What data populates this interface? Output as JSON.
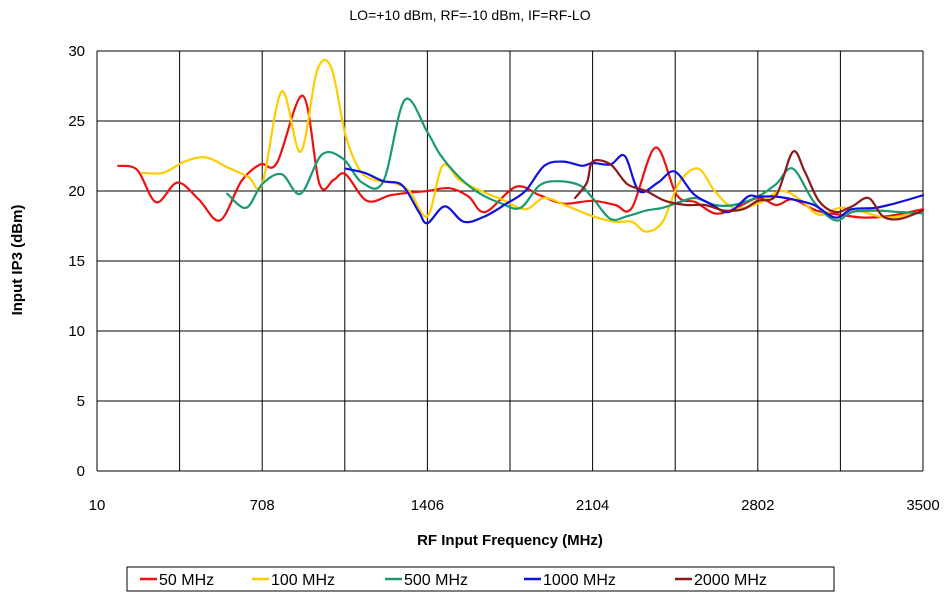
{
  "chart_data": {
    "type": "line",
    "title": "LO=+10 dBm, RF=-10 dBm, IF=RF-LO",
    "xlabel": "RF Input Frequency (MHz)",
    "ylabel": "Input IP3 (dBm)",
    "xlim": [
      10,
      3500
    ],
    "ylim": [
      0,
      30
    ],
    "xticks": [
      10,
      708,
      1406,
      2104,
      2802,
      3500
    ],
    "xtick_labels": [
      "10",
      "708",
      "1406",
      "2104",
      "2802",
      "3500"
    ],
    "yticks": [
      0,
      5,
      10,
      15,
      20,
      25,
      30
    ],
    "ytick_labels": [
      "0",
      "5",
      "10",
      "15",
      "20",
      "25",
      "30"
    ],
    "grid": true,
    "legend_position": "bottom",
    "series": [
      {
        "name": "50 MHz",
        "color": "#ee1111",
        "x": [
          100,
          180,
          260,
          350,
          440,
          530,
          620,
          700,
          770,
          880,
          950,
          1010,
          1060,
          1150,
          1250,
          1340,
          1406,
          1500,
          1580,
          1650,
          1780,
          1880,
          1980,
          2104,
          2200,
          2270,
          2370,
          2460,
          2540,
          2620,
          2700,
          2802,
          2880,
          2950,
          3050,
          3150,
          3250,
          3350,
          3500
        ],
        "values": [
          21.8,
          21.5,
          19.2,
          20.6,
          19.4,
          17.9,
          20.7,
          21.9,
          22.0,
          26.8,
          20.5,
          20.8,
          21.2,
          19.3,
          19.7,
          19.9,
          20.0,
          20.2,
          19.6,
          18.5,
          20.3,
          19.7,
          19.1,
          19.3,
          19.0,
          18.8,
          23.1,
          19.7,
          19.2,
          18.4,
          18.7,
          19.5,
          19.0,
          19.4,
          18.6,
          18.3,
          18.1,
          18.2,
          18.7
        ]
      },
      {
        "name": "100 MHz",
        "color": "#ffcc00",
        "x": [
          200,
          290,
          380,
          470,
          560,
          650,
          708,
          790,
          870,
          940,
          1000,
          1060,
          1120,
          1180,
          1260,
          1330,
          1406,
          1470,
          1540,
          1620,
          1720,
          1820,
          1900,
          2000,
          2104,
          2200,
          2270,
          2330,
          2400,
          2470,
          2550,
          2620,
          2700,
          2802,
          2900,
          2980,
          3060,
          3150,
          3250,
          3350,
          3500
        ],
        "values": [
          21.3,
          21.3,
          22.1,
          22.4,
          21.7,
          21.0,
          20.5,
          27.1,
          22.8,
          28.6,
          28.8,
          24.0,
          21.5,
          20.8,
          20.6,
          20.0,
          18.2,
          21.8,
          20.8,
          20.1,
          19.4,
          18.7,
          19.5,
          18.9,
          18.2,
          17.8,
          17.8,
          17.1,
          17.8,
          20.6,
          21.6,
          20.0,
          18.8,
          19.1,
          20.0,
          19.4,
          18.3,
          18.8,
          18.5,
          18.1,
          18.5
        ]
      },
      {
        "name": "500 MHz",
        "color": "#1a9a6e",
        "x": [
          560,
          640,
          708,
          790,
          870,
          960,
          1050,
          1130,
          1220,
          1310,
          1406,
          1460,
          1540,
          1620,
          1720,
          1800,
          1880,
          1960,
          2050,
          2104,
          2180,
          2250,
          2330,
          2400,
          2470,
          2540,
          2620,
          2700,
          2802,
          2880,
          2950,
          3040,
          3130,
          3200,
          3300,
          3400,
          3500
        ],
        "values": [
          19.8,
          18.8,
          20.5,
          21.2,
          19.8,
          22.6,
          22.3,
          20.6,
          20.7,
          26.5,
          24.2,
          22.6,
          21.0,
          19.9,
          19.1,
          18.8,
          20.4,
          20.7,
          20.4,
          19.5,
          18.0,
          18.2,
          18.6,
          18.8,
          19.2,
          19.5,
          19.0,
          19.0,
          19.6,
          20.5,
          21.6,
          19.2,
          17.9,
          18.5,
          18.6,
          18.5,
          18.4
        ]
      },
      {
        "name": "1000 MHz",
        "color": "#1111dd",
        "x": [
          1060,
          1140,
          1220,
          1300,
          1370,
          1406,
          1480,
          1560,
          1650,
          1740,
          1820,
          1900,
          1980,
          2060,
          2104,
          2180,
          2240,
          2300,
          2380,
          2450,
          2530,
          2600,
          2680,
          2760,
          2802,
          2880,
          2950,
          3040,
          3130,
          3200,
          3300,
          3400,
          3500
        ],
        "values": [
          21.6,
          21.3,
          20.7,
          20.4,
          18.5,
          17.7,
          18.9,
          17.8,
          18.2,
          19.1,
          20.0,
          21.8,
          22.1,
          21.8,
          22.0,
          21.9,
          22.5,
          20.0,
          20.6,
          21.4,
          19.8,
          19.1,
          18.5,
          19.6,
          19.6,
          19.6,
          19.4,
          19.0,
          18.1,
          18.7,
          18.8,
          19.2,
          19.7
        ]
      },
      {
        "name": "2000 MHz",
        "color": "#8b1a1a",
        "x": [
          2030,
          2080,
          2104,
          2180,
          2250,
          2330,
          2410,
          2500,
          2580,
          2660,
          2740,
          2802,
          2880,
          2950,
          3000,
          3060,
          3130,
          3200,
          3270,
          3330,
          3400,
          3500
        ],
        "values": [
          19.5,
          20.6,
          22.1,
          21.9,
          20.5,
          20.0,
          19.3,
          19.0,
          19.0,
          18.6,
          18.7,
          19.3,
          19.7,
          22.8,
          21.4,
          19.3,
          18.5,
          18.9,
          19.5,
          18.2,
          18.0,
          18.6
        ]
      }
    ]
  }
}
